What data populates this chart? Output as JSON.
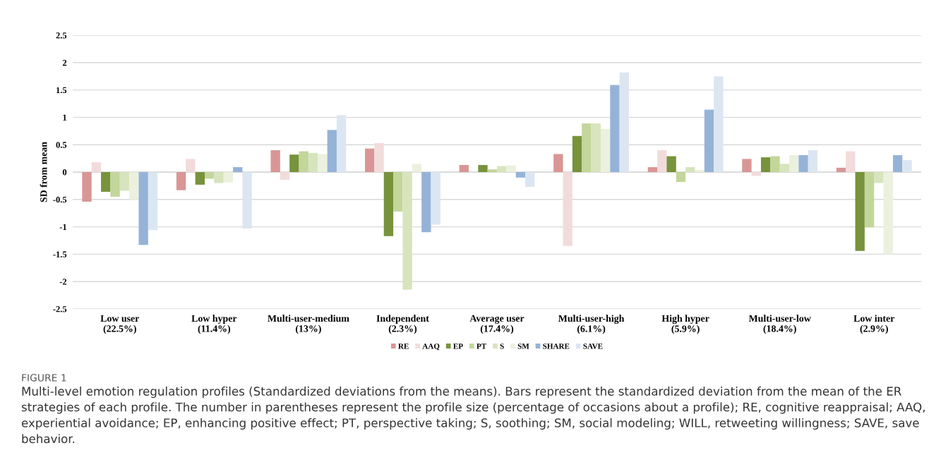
{
  "chart_data": {
    "type": "bar",
    "ylabel": "SD from mean",
    "categories": [
      "Low user\n(22.5%)",
      "Low hyper\n(11.4%)",
      "Multi-user-medium\n(13%)",
      "Independent\n(2.3%)",
      "Average user\n(17.4%)",
      "Multi-user-high\n(6.1%)",
      "High hyper\n(5.9%)",
      "Multi-user-low\n(18.4%)",
      "Low inter\n(2.9%)"
    ],
    "series": [
      {
        "name": "RE",
        "color": "#d99694",
        "values": [
          -0.54,
          -0.33,
          0.4,
          0.43,
          0.13,
          0.33,
          0.09,
          0.24,
          0.08
        ]
      },
      {
        "name": "AAQ",
        "color": "#f2dcdb",
        "values": [
          0.18,
          0.24,
          -0.14,
          0.53,
          0,
          -1.35,
          0.4,
          -0.07,
          0.38
        ]
      },
      {
        "name": "EP",
        "color": "#77933c",
        "values": [
          -0.36,
          -0.23,
          0.32,
          -1.17,
          0.13,
          0.66,
          0.29,
          0.27,
          -1.44
        ]
      },
      {
        "name": "PT",
        "color": "#c3d69b",
        "values": [
          -0.45,
          -0.12,
          0.38,
          -0.72,
          0.05,
          0.89,
          -0.18,
          0.29,
          -1.01
        ]
      },
      {
        "name": "S",
        "color": "#d7e4bd",
        "values": [
          -0.34,
          -0.2,
          0.35,
          -2.15,
          0.11,
          0.89,
          0.09,
          0.15,
          -0.2
        ]
      },
      {
        "name": "SM",
        "color": "#ebf1de",
        "values": [
          -0.5,
          -0.19,
          0.33,
          0.15,
          0.12,
          0.79,
          0.04,
          0.31,
          -1.5
        ]
      },
      {
        "name": "SHARE",
        "color": "#95b3d7",
        "values": [
          -1.33,
          0.09,
          0.77,
          -1.1,
          -0.1,
          1.59,
          1.14,
          0.31,
          0.31
        ]
      },
      {
        "name": "SAVE",
        "color": "#dce6f2",
        "values": [
          -1.06,
          -1.03,
          1.04,
          -0.96,
          -0.27,
          1.82,
          1.75,
          0.4,
          0.22
        ]
      }
    ],
    "ylim": [
      -2.5,
      2.5
    ],
    "yticks": [
      {
        "value": -2.5,
        "label": "-2.5"
      },
      {
        "value": -2,
        "label": "-2"
      },
      {
        "value": -1.5,
        "label": "-1.5"
      },
      {
        "value": -1,
        "label": "-1"
      },
      {
        "value": -0.5,
        "label": "-0.5"
      },
      0,
      0.5,
      1,
      1.5,
      2,
      2.5
    ],
    "grid": "y",
    "legend": "bottom",
    "annotations": [
      "FIGURE 1",
      "Multi-level emotion regulation profiles (Standardized deviations from the means). Bars represent the standardized deviation from the mean of the ER strategies of each profile. The number in parentheses represent the profile size (percentage of occasions about a profile); RE, cognitive reappraisal; AAQ, experiential avoidance; EP, enhancing positive effect; PT, perspective taking; S, soothing; SM, social modeling; WILL, retweeting willingness; SAVE, save behavior."
    ]
  }
}
